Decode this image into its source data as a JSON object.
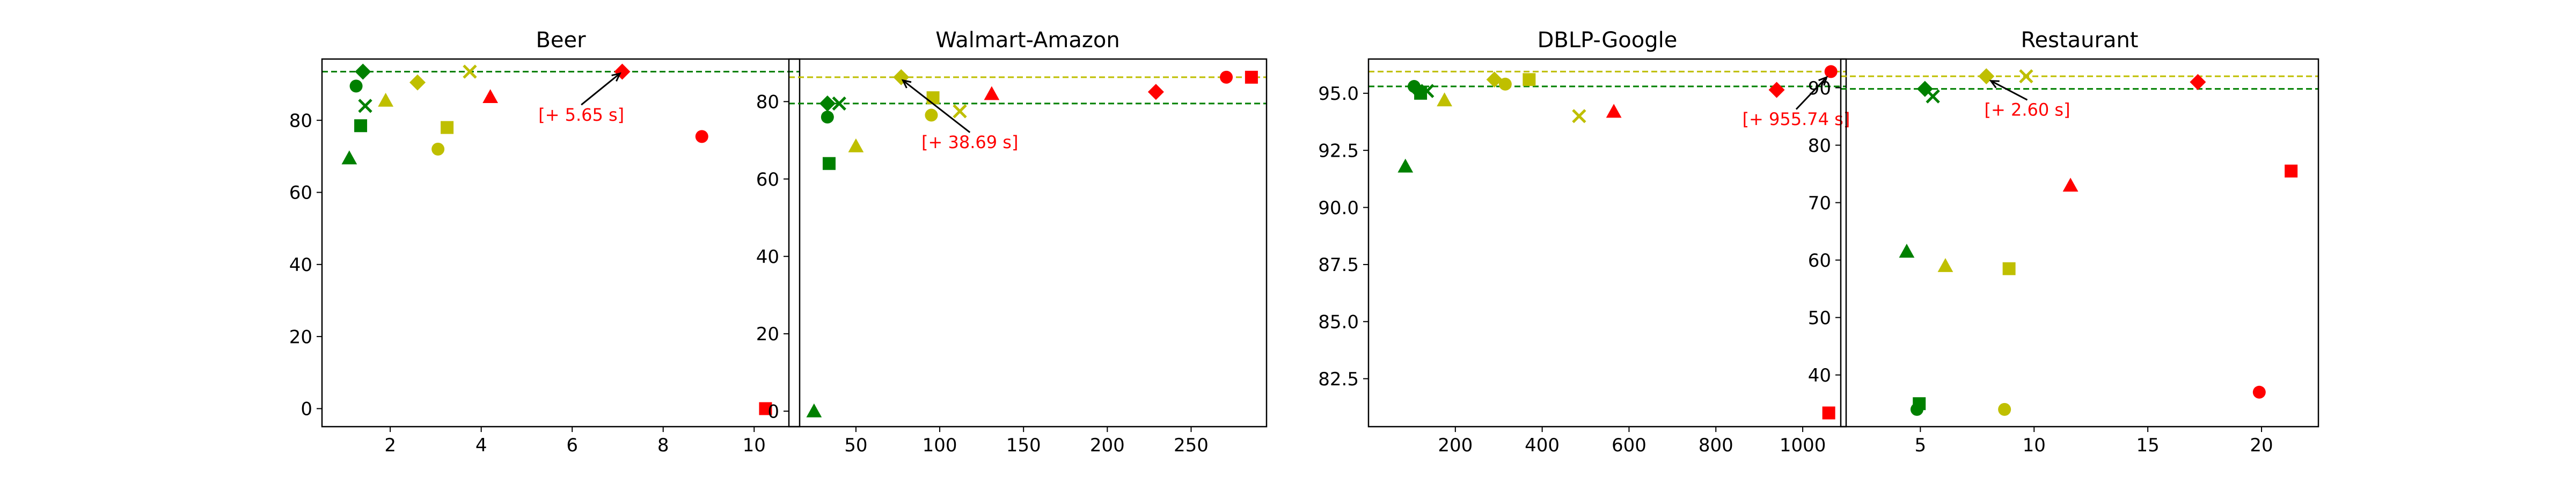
{
  "chart_data": [
    {
      "type": "scatter",
      "title": "Beer",
      "xlim": [
        0.5,
        11.0
      ],
      "ylim": [
        -5,
        97
      ],
      "xticks": [
        2,
        4,
        6,
        8,
        10
      ],
      "yticks": [
        0,
        20,
        40,
        60,
        80
      ],
      "xtick_labels": [
        "2",
        "4",
        "6",
        "8",
        "10"
      ],
      "ytick_labels": [
        "0",
        "20",
        "40",
        "60",
        "80"
      ],
      "hlines": [
        {
          "y": 93.5,
          "color": "#008000"
        }
      ],
      "points": [
        {
          "x": 1.1,
          "y": 69.5,
          "marker": "triangle",
          "color": "#008000"
        },
        {
          "x": 1.25,
          "y": 89.5,
          "marker": "circle",
          "color": "#008000"
        },
        {
          "x": 1.35,
          "y": 78.5,
          "marker": "square",
          "color": "#008000"
        },
        {
          "x": 1.4,
          "y": 93.5,
          "marker": "diamond",
          "color": "#008000"
        },
        {
          "x": 1.45,
          "y": 84.0,
          "marker": "x",
          "color": "#008000"
        },
        {
          "x": 1.9,
          "y": 85.5,
          "marker": "triangle",
          "color": "#bfbf00"
        },
        {
          "x": 2.6,
          "y": 90.5,
          "marker": "diamond",
          "color": "#bfbf00"
        },
        {
          "x": 3.05,
          "y": 72.0,
          "marker": "circle",
          "color": "#bfbf00"
        },
        {
          "x": 3.25,
          "y": 78.0,
          "marker": "square",
          "color": "#bfbf00"
        },
        {
          "x": 3.75,
          "y": 93.5,
          "marker": "x",
          "color": "#bfbf00"
        },
        {
          "x": 4.2,
          "y": 86.5,
          "marker": "triangle",
          "color": "#ff0000"
        },
        {
          "x": 7.1,
          "y": 93.5,
          "marker": "diamond",
          "color": "#ff0000"
        },
        {
          "x": 8.85,
          "y": 75.5,
          "marker": "circle",
          "color": "#ff0000"
        },
        {
          "x": 10.25,
          "y": 0.0,
          "marker": "square",
          "color": "#ff0000"
        }
      ],
      "annotation": {
        "text": "[+ 5.65 s]",
        "text_x": 6.2,
        "text_y": 80.5,
        "arrow_to_x": 7.05,
        "arrow_to_y": 93.0
      }
    },
    {
      "type": "scatter",
      "title": "Walmart-Amazon",
      "xlim": [
        10,
        295
      ],
      "ylim": [
        -4,
        91
      ],
      "xticks": [
        50,
        100,
        150,
        200,
        250
      ],
      "yticks": [
        0,
        20,
        40,
        60,
        80
      ],
      "xtick_labels": [
        "50",
        "100",
        "150",
        "200",
        "250"
      ],
      "ytick_labels": [
        "0",
        "20",
        "40",
        "60",
        "80"
      ],
      "hlines": [
        {
          "y": 86.3,
          "color": "#bfbf00"
        },
        {
          "y": 79.5,
          "color": "#008000"
        }
      ],
      "points": [
        {
          "x": 25,
          "y": 0.0,
          "marker": "triangle",
          "color": "#008000"
        },
        {
          "x": 33,
          "y": 76.0,
          "marker": "circle",
          "color": "#008000"
        },
        {
          "x": 34,
          "y": 64.0,
          "marker": "square",
          "color": "#008000"
        },
        {
          "x": 33,
          "y": 79.5,
          "marker": "diamond",
          "color": "#008000"
        },
        {
          "x": 40,
          "y": 79.5,
          "marker": "x",
          "color": "#008000"
        },
        {
          "x": 50,
          "y": 68.5,
          "marker": "triangle",
          "color": "#bfbf00"
        },
        {
          "x": 77,
          "y": 86.3,
          "marker": "diamond",
          "color": "#bfbf00"
        },
        {
          "x": 95,
          "y": 76.5,
          "marker": "circle",
          "color": "#bfbf00"
        },
        {
          "x": 96,
          "y": 81.0,
          "marker": "square",
          "color": "#bfbf00"
        },
        {
          "x": 112,
          "y": 77.5,
          "marker": "x",
          "color": "#bfbf00"
        },
        {
          "x": 131,
          "y": 82.0,
          "marker": "triangle",
          "color": "#ff0000"
        },
        {
          "x": 229,
          "y": 82.5,
          "marker": "diamond",
          "color": "#ff0000"
        },
        {
          "x": 271,
          "y": 86.3,
          "marker": "circle",
          "color": "#ff0000"
        },
        {
          "x": 286,
          "y": 86.3,
          "marker": "square",
          "color": "#ff0000"
        }
      ],
      "annotation": {
        "text": "[+ 38.69 s]",
        "text_x": 118,
        "text_y": 68.5,
        "arrow_to_x": 78,
        "arrow_to_y": 85.5
      }
    },
    {
      "type": "scatter",
      "title": "DBLP-Google",
      "xlim": [
        0,
        1100
      ],
      "ylim": [
        80.4,
        96.5
      ],
      "xticks": [
        200,
        400,
        600,
        800,
        1000
      ],
      "yticks": [
        82.5,
        85.0,
        87.5,
        90.0,
        92.5,
        95.0
      ],
      "xtick_labels": [
        "200",
        "400",
        "600",
        "800",
        "1000"
      ],
      "ytick_labels": [
        "82.5",
        "85.0",
        "87.5",
        "90.0",
        "92.5",
        "95.0"
      ],
      "hlines": [
        {
          "y": 95.95,
          "color": "#bfbf00"
        },
        {
          "y": 95.3,
          "color": "#008000"
        }
      ],
      "points": [
        {
          "x": 85,
          "y": 91.8,
          "marker": "triangle",
          "color": "#008000"
        },
        {
          "x": 105,
          "y": 95.3,
          "marker": "circle",
          "color": "#008000"
        },
        {
          "x": 120,
          "y": 95.0,
          "marker": "square",
          "color": "#008000"
        },
        {
          "x": 110,
          "y": 95.2,
          "marker": "diamond",
          "color": "#008000"
        },
        {
          "x": 135,
          "y": 95.1,
          "marker": "x",
          "color": "#008000"
        },
        {
          "x": 175,
          "y": 94.7,
          "marker": "triangle",
          "color": "#bfbf00"
        },
        {
          "x": 290,
          "y": 95.6,
          "marker": "diamond",
          "color": "#bfbf00"
        },
        {
          "x": 315,
          "y": 95.4,
          "marker": "circle",
          "color": "#bfbf00"
        },
        {
          "x": 370,
          "y": 95.6,
          "marker": "square",
          "color": "#bfbf00"
        },
        {
          "x": 485,
          "y": 94.0,
          "marker": "x",
          "color": "#bfbf00"
        },
        {
          "x": 565,
          "y": 94.2,
          "marker": "triangle",
          "color": "#ff0000"
        },
        {
          "x": 940,
          "y": 95.15,
          "marker": "diamond",
          "color": "#ff0000"
        },
        {
          "x": 1065,
          "y": 95.95,
          "marker": "circle",
          "color": "#ff0000"
        },
        {
          "x": 1060,
          "y": 81.0,
          "marker": "square",
          "color": "#ff0000"
        }
      ],
      "annotation": {
        "text": "[+ 955.74 s]",
        "text_x": 985,
        "text_y": 93.7,
        "arrow_to_x": 1055,
        "arrow_to_y": 95.7
      }
    },
    {
      "type": "scatter",
      "title": "Restaurant",
      "xlim": [
        1.5,
        22.5
      ],
      "ylim": [
        31,
        95
      ],
      "xticks": [
        5,
        10,
        15,
        20
      ],
      "yticks": [
        40,
        50,
        60,
        70,
        80,
        90
      ],
      "xtick_labels": [
        "5",
        "10",
        "15",
        "20"
      ],
      "ytick_labels": [
        "40",
        "50",
        "60",
        "70",
        "80",
        "90"
      ],
      "hlines": [
        {
          "y": 92.0,
          "color": "#bfbf00"
        },
        {
          "y": 89.8,
          "color": "#008000"
        }
      ],
      "points": [
        {
          "x": 4.4,
          "y": 61.5,
          "marker": "triangle",
          "color": "#008000"
        },
        {
          "x": 4.85,
          "y": 34.0,
          "marker": "circle",
          "color": "#008000"
        },
        {
          "x": 4.95,
          "y": 35.0,
          "marker": "square",
          "color": "#008000"
        },
        {
          "x": 5.2,
          "y": 89.8,
          "marker": "diamond",
          "color": "#008000"
        },
        {
          "x": 5.55,
          "y": 88.5,
          "marker": "x",
          "color": "#008000"
        },
        {
          "x": 6.1,
          "y": 59.0,
          "marker": "triangle",
          "color": "#bfbf00"
        },
        {
          "x": 7.9,
          "y": 92.0,
          "marker": "diamond",
          "color": "#bfbf00"
        },
        {
          "x": 8.7,
          "y": 34.0,
          "marker": "circle",
          "color": "#bfbf00"
        },
        {
          "x": 8.9,
          "y": 58.5,
          "marker": "square",
          "color": "#bfbf00"
        },
        {
          "x": 9.65,
          "y": 92.0,
          "marker": "x",
          "color": "#bfbf00"
        },
        {
          "x": 11.6,
          "y": 73.0,
          "marker": "triangle",
          "color": "#ff0000"
        },
        {
          "x": 17.2,
          "y": 91.0,
          "marker": "diamond",
          "color": "#ff0000"
        },
        {
          "x": 19.9,
          "y": 37.0,
          "marker": "circle",
          "color": "#ff0000"
        },
        {
          "x": 21.3,
          "y": 75.5,
          "marker": "square",
          "color": "#ff0000"
        }
      ],
      "annotation": {
        "text": "[+ 2.60 s]",
        "text_x": 9.7,
        "text_y": 85.5,
        "arrow_to_x": 8.1,
        "arrow_to_y": 91.2
      }
    }
  ]
}
